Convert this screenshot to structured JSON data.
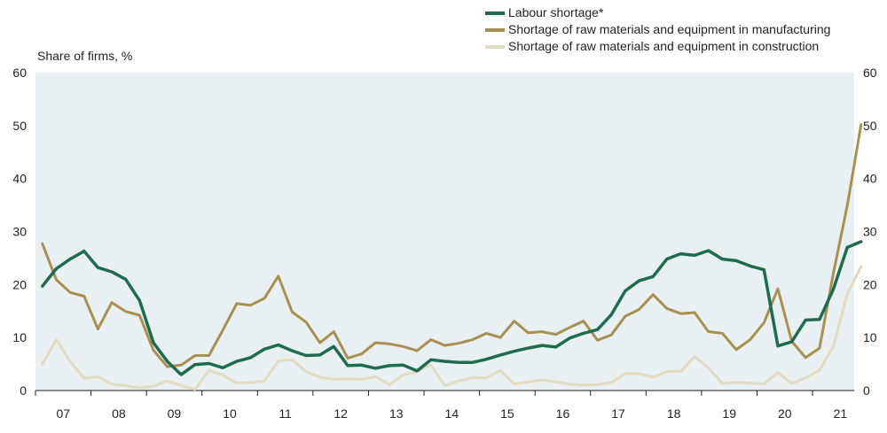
{
  "chart_data": {
    "type": "line",
    "ylabel": "Share of firms, %",
    "ylim": [
      0,
      60
    ],
    "yticks": [
      0,
      10,
      20,
      30,
      40,
      50,
      60
    ],
    "xlim": [
      2007.0,
      2021.75
    ],
    "xticks": [
      {
        "label": "07",
        "x": 2007.5
      },
      {
        "label": "08",
        "x": 2008.5
      },
      {
        "label": "09",
        "x": 2009.5
      },
      {
        "label": "10",
        "x": 2010.5
      },
      {
        "label": "11",
        "x": 2011.5
      },
      {
        "label": "12",
        "x": 2012.5
      },
      {
        "label": "13",
        "x": 2013.5
      },
      {
        "label": "14",
        "x": 2014.5
      },
      {
        "label": "15",
        "x": 2015.5
      },
      {
        "label": "16",
        "x": 2016.5
      },
      {
        "label": "17",
        "x": 2017.5
      },
      {
        "label": "18",
        "x": 2018.5
      },
      {
        "label": "19",
        "x": 2019.5
      },
      {
        "label": "20",
        "x": 2020.5
      },
      {
        "label": "21",
        "x": 2021.5
      }
    ],
    "x_start": 2007.125,
    "x_step": 0.25,
    "grid": false,
    "legend_position": "top-right",
    "series": [
      {
        "name": "Labour shortage*",
        "color": "#1f6b4e",
        "width": 3.5,
        "values": [
          19.7,
          23.0,
          24.8,
          26.3,
          23.2,
          22.4,
          21.0,
          17.0,
          9.0,
          5.5,
          3.0,
          4.9,
          5.1,
          4.3,
          5.5,
          6.2,
          7.8,
          8.6,
          7.5,
          6.6,
          6.7,
          8.3,
          4.7,
          4.8,
          4.2,
          4.7,
          4.8,
          3.7,
          5.8,
          5.5,
          5.3,
          5.3,
          5.9,
          6.7,
          7.4,
          8.0,
          8.5,
          8.2,
          9.9,
          10.8,
          11.5,
          14.3,
          18.8,
          20.7,
          21.5,
          24.8,
          25.8,
          25.5,
          26.4,
          24.8,
          24.5,
          23.5,
          22.8,
          8.4,
          9.2,
          13.3,
          13.4,
          19.1,
          27.0,
          28.1
        ]
      },
      {
        "name": "Shortage of raw materials and equipment in manufacturing",
        "color": "#a89050",
        "width": 3,
        "values": [
          27.7,
          20.9,
          18.5,
          17.8,
          11.6,
          16.6,
          14.9,
          14.2,
          7.6,
          4.5,
          4.8,
          6.6,
          6.6,
          11.4,
          16.4,
          16.1,
          17.4,
          21.6,
          14.8,
          12.9,
          9.0,
          11.1,
          6.1,
          6.9,
          9.0,
          8.8,
          8.3,
          7.5,
          9.6,
          8.5,
          8.9,
          9.6,
          10.8,
          10.0,
          13.1,
          10.9,
          11.1,
          10.6,
          11.9,
          13.1,
          9.5,
          10.5,
          14.0,
          15.3,
          18.1,
          15.5,
          14.5,
          14.7,
          11.1,
          10.8,
          7.7,
          9.6,
          12.8,
          19.2,
          9.3,
          6.2,
          8.0,
          22.1,
          34.9,
          50.2
        ]
      },
      {
        "name": "Shortage of raw materials and equipment in construction",
        "color": "#e2dbbf",
        "width": 3,
        "values": [
          5.0,
          9.6,
          5.5,
          2.3,
          2.6,
          1.2,
          0.9,
          0.5,
          0.8,
          1.8,
          0.9,
          0.2,
          3.8,
          2.9,
          1.4,
          1.5,
          1.8,
          5.6,
          5.8,
          3.6,
          2.5,
          2.1,
          2.2,
          2.1,
          2.6,
          1.1,
          2.9,
          3.6,
          4.8,
          0.9,
          1.8,
          2.4,
          2.4,
          3.8,
          1.2,
          1.6,
          2.0,
          1.6,
          1.2,
          1.0,
          1.1,
          1.5,
          3.2,
          3.2,
          2.5,
          3.6,
          3.6,
          6.4,
          4.3,
          1.3,
          1.5,
          1.4,
          1.2,
          3.4,
          1.3,
          2.4,
          3.8,
          8.3,
          18.2,
          23.4
        ]
      }
    ]
  }
}
